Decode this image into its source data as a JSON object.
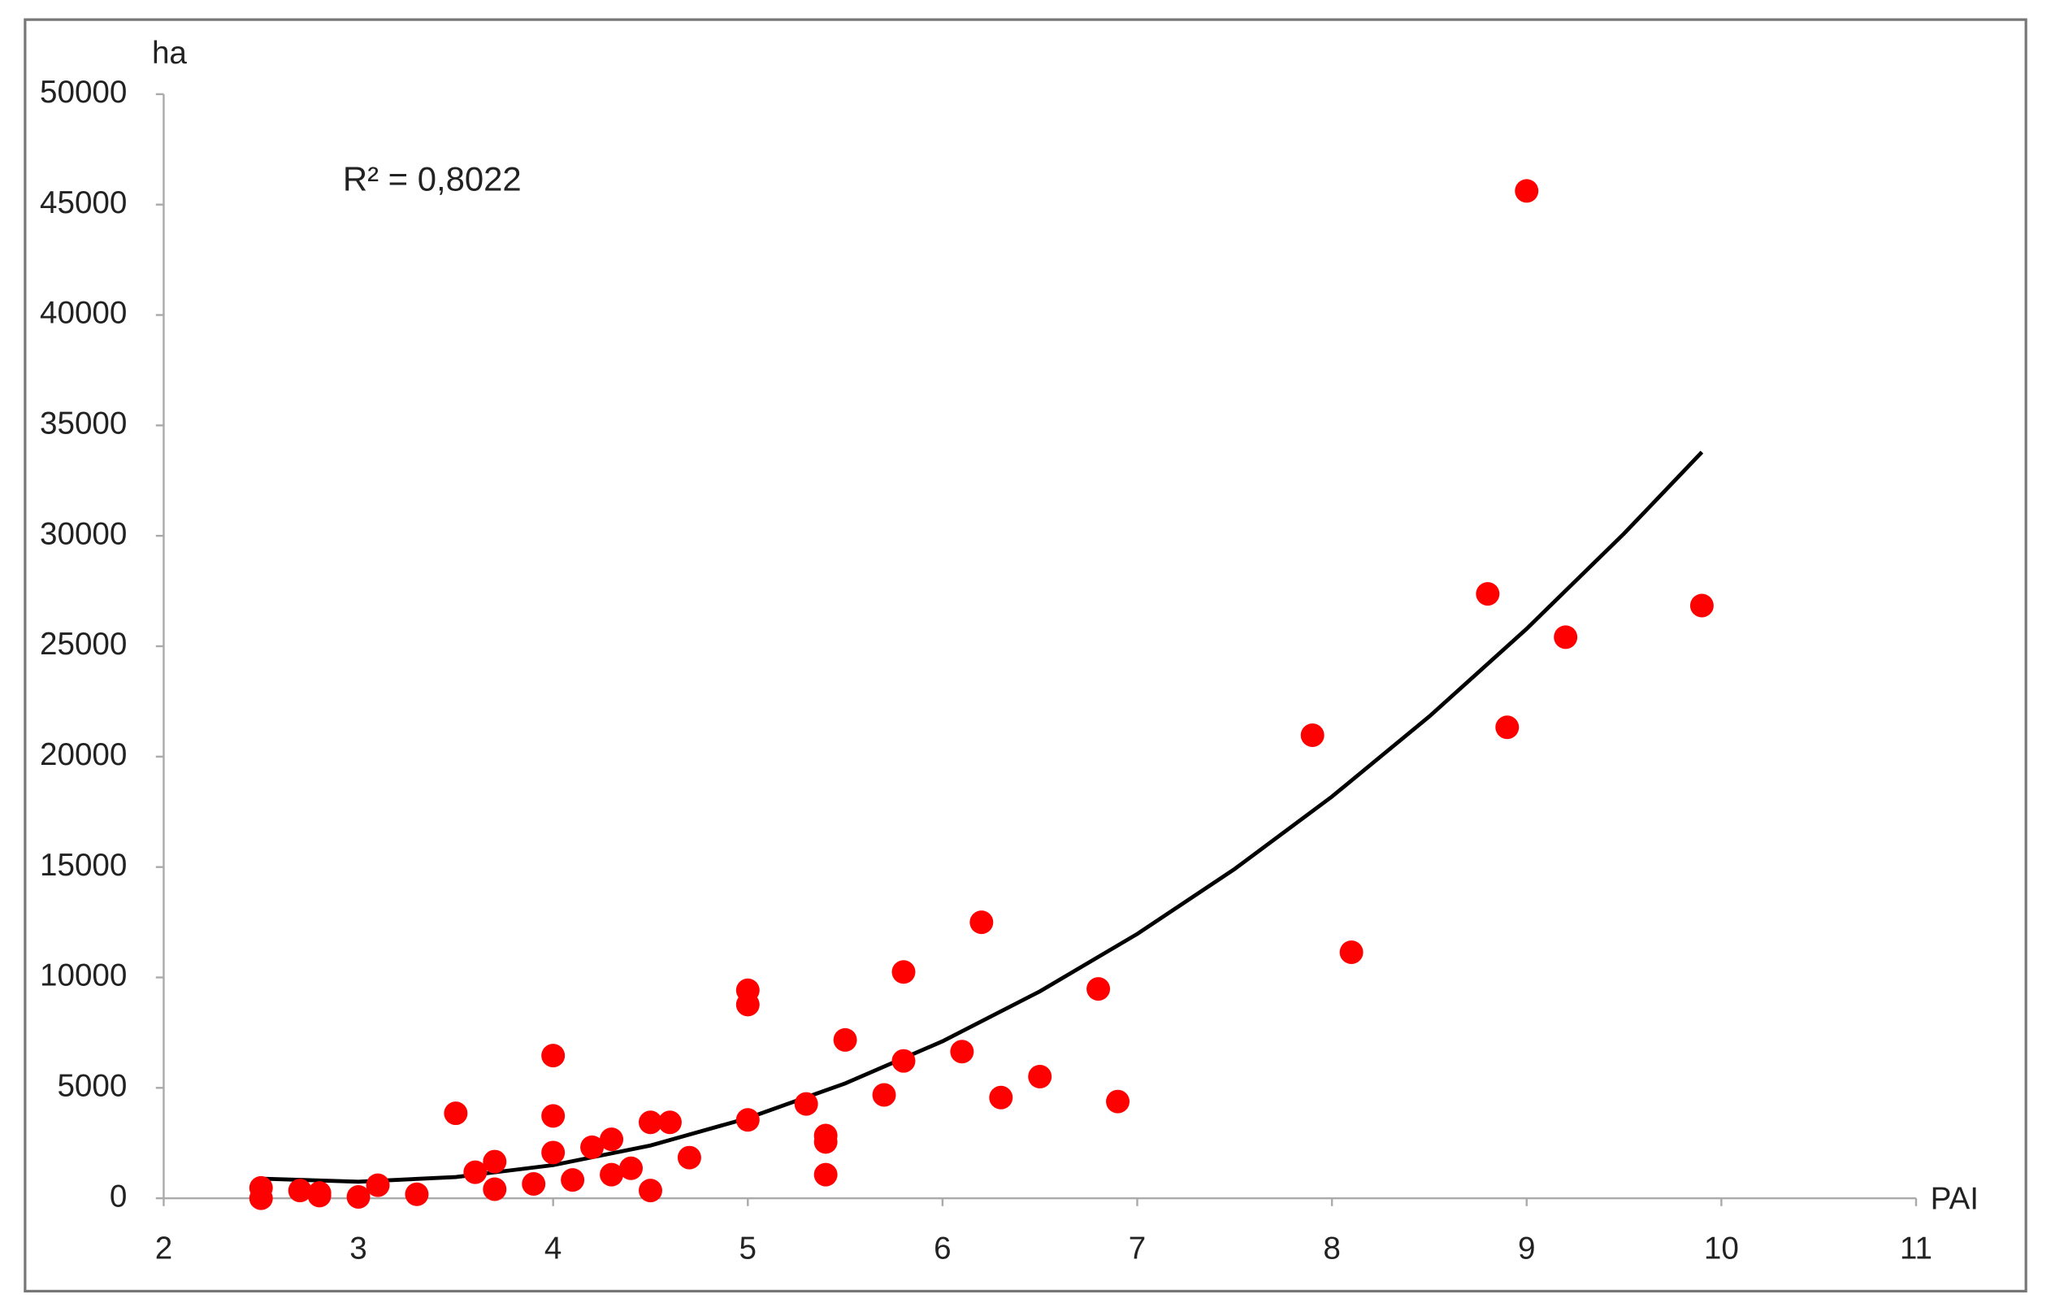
{
  "chart_data": {
    "type": "scatter",
    "xlabel": "PAI",
    "ylabel": "ha",
    "annotation": "R² = 0,8022",
    "color": "#ff0000",
    "x": [
      2.5,
      2.5,
      2.7,
      2.8,
      2.8,
      3.0,
      3.1,
      3.3,
      3.5,
      3.6,
      3.7,
      3.7,
      3.9,
      4.0,
      4.0,
      4.0,
      4.1,
      4.2,
      4.3,
      4.3,
      4.4,
      4.5,
      4.5,
      4.6,
      4.7,
      5.0,
      5.0,
      5.0,
      5.3,
      5.4,
      5.4,
      5.4,
      5.5,
      5.7,
      5.8,
      5.8,
      6.1,
      6.2,
      6.3,
      6.5,
      6.8,
      6.9,
      7.9,
      8.1,
      8.8,
      8.9,
      9.0,
      9.2,
      9.9
    ],
    "values": [
      470,
      0,
      350,
      240,
      120,
      60,
      590,
      180,
      3850,
      1180,
      1660,
      410,
      650,
      6460,
      3730,
      2070,
      830,
      2310,
      2670,
      1070,
      1360,
      3440,
      350,
      3440,
      1840,
      9420,
      8770,
      3550,
      4270,
      2840,
      2550,
      1070,
      7170,
      4680,
      10250,
      6220,
      6640,
      12500,
      4560,
      5510,
      9480,
      4380,
      20970,
      11140,
      27370,
      21330,
      45620,
      25410,
      26840
    ],
    "trendline": {
      "color": "#000000",
      "x": [
        2.5,
        3,
        3.5,
        4,
        4.5,
        5,
        5.5,
        6,
        6.5,
        7,
        7.5,
        8,
        8.5,
        9,
        9.5,
        9.9
      ],
      "values": [
        890,
        750,
        960,
        1500,
        2390,
        3630,
        5200,
        7110,
        9370,
        11970,
        14910,
        18190,
        21820,
        25790,
        30100,
        33790
      ]
    },
    "xlim": [
      2,
      11
    ],
    "ylim": [
      0,
      50000
    ],
    "xticks": [
      2,
      3,
      4,
      5,
      6,
      7,
      8,
      9,
      10,
      11
    ],
    "yticks": [
      0,
      5000,
      10000,
      15000,
      20000,
      25000,
      30000,
      35000,
      40000,
      45000,
      50000
    ]
  }
}
